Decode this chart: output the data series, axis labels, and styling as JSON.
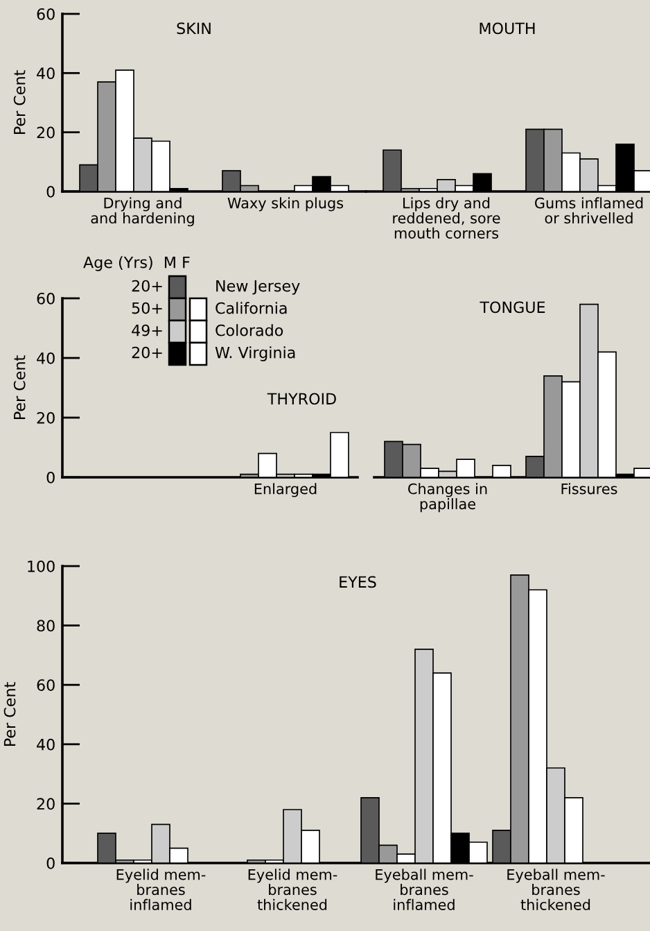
{
  "chart_data": [
    {
      "type": "bar",
      "title": "SKIN",
      "ylabel": "Per Cent",
      "categories": [
        "Drying and\nand hardening",
        "Waxy skin plugs"
      ],
      "ylim": [
        0,
        60
      ],
      "yticks": [
        0,
        20,
        40,
        60
      ],
      "grid": false,
      "series": [
        {
          "color": "#5a5a5a",
          "values": [
            9,
            7
          ]
        },
        {
          "color": "#999999",
          "values": [
            37,
            2
          ]
        },
        {
          "color": "#ffffff",
          "values": [
            41,
            null
          ]
        },
        {
          "color": "#cccccc",
          "values": [
            18,
            null
          ]
        },
        {
          "color": "#ffffff",
          "values": [
            17,
            2
          ]
        },
        {
          "color": "#000000",
          "values": [
            1,
            5
          ]
        },
        {
          "color": "#ffffff",
          "values": [
            null,
            2
          ]
        }
      ]
    },
    {
      "type": "bar",
      "title": "MOUTH",
      "categories": [
        "Lips dry and\nreddened, sore\nmouth corners",
        "Gums inflamed\nor shrivelled"
      ],
      "ylim": [
        0,
        60
      ],
      "yticks": [
        0,
        20,
        40,
        60
      ],
      "tick_labels": "x",
      "grid": false,
      "series": [
        {
          "color": "#5a5a5a",
          "values": [
            14,
            21
          ]
        },
        {
          "color": "#999999",
          "values": [
            1,
            21
          ]
        },
        {
          "color": "#ffffff",
          "values": [
            1,
            13
          ]
        },
        {
          "color": "#cccccc",
          "values": [
            4,
            11
          ]
        },
        {
          "color": "#ffffff",
          "values": [
            2,
            2
          ]
        },
        {
          "color": "#000000",
          "values": [
            6,
            16
          ]
        },
        {
          "color": "#ffffff",
          "values": [
            null,
            7
          ]
        }
      ]
    },
    {
      "type": "bar",
      "title": "THYROID",
      "ylabel": "Per Cent",
      "categories": [
        "Enlarged"
      ],
      "ylim": [
        0,
        60
      ],
      "yticks": [
        0,
        20,
        40,
        60
      ],
      "grid": false,
      "legend": "top",
      "legend_title": "Age (Yrs)  M F",
      "annotations": [
        "20+",
        "50+",
        "49+",
        "20+"
      ],
      "series": [
        {
          "name": "New Jersey",
          "color": "#5a5a5a",
          "values": [
            null
          ]
        },
        {
          "color": "#999999",
          "values": [
            1
          ]
        },
        {
          "name": "California",
          "color": "#ffffff",
          "values": [
            8
          ]
        },
        {
          "color": "#cccccc",
          "values": [
            1
          ]
        },
        {
          "name": "Colorado",
          "color": "#ffffff",
          "values": [
            1
          ]
        },
        {
          "color": "#000000",
          "values": [
            1
          ]
        },
        {
          "name": "W. Virginia",
          "color": "#ffffff",
          "values": [
            15
          ]
        }
      ]
    },
    {
      "type": "bar",
      "title": "TONGUE",
      "categories": [
        "Changes in\npapillae",
        "Fissures"
      ],
      "ylim": [
        0,
        60
      ],
      "yticks": [
        0,
        20,
        40,
        60
      ],
      "tick_labels": "x",
      "grid": false,
      "series": [
        {
          "color": "#5a5a5a",
          "values": [
            12,
            7
          ]
        },
        {
          "color": "#999999",
          "values": [
            11,
            34
          ]
        },
        {
          "color": "#ffffff",
          "values": [
            3,
            32
          ]
        },
        {
          "color": "#cccccc",
          "values": [
            2,
            58
          ]
        },
        {
          "color": "#ffffff",
          "values": [
            6,
            42
          ]
        },
        {
          "color": "#000000",
          "values": [
            null,
            1
          ]
        },
        {
          "color": "#ffffff",
          "values": [
            4,
            3
          ]
        }
      ]
    },
    {
      "type": "bar",
      "title": "EYES",
      "ylabel": "Per Cent",
      "categories": [
        "Eyelid mem-\nbranes\ninflamed",
        "Eyelid mem-\nbranes\nthickened",
        "Eyeball mem-\nbranes\ninflamed",
        "Eyeball mem-\nbranes\nthickened"
      ],
      "ylim": [
        0,
        100
      ],
      "yticks": [
        0,
        20,
        40,
        60,
        80,
        100
      ],
      "grid": false,
      "series": [
        {
          "color": "#5a5a5a",
          "values": [
            10,
            null,
            22,
            11
          ]
        },
        {
          "color": "#999999",
          "values": [
            1,
            1,
            6,
            97
          ]
        },
        {
          "color": "#ffffff",
          "values": [
            1,
            1,
            3,
            92
          ]
        },
        {
          "color": "#cccccc",
          "values": [
            13,
            18,
            72,
            32
          ]
        },
        {
          "color": "#ffffff",
          "values": [
            5,
            11,
            64,
            22
          ]
        },
        {
          "color": "#000000",
          "values": [
            null,
            null,
            10,
            null
          ]
        },
        {
          "color": "#ffffff",
          "values": [
            null,
            null,
            7,
            null
          ]
        }
      ]
    }
  ]
}
